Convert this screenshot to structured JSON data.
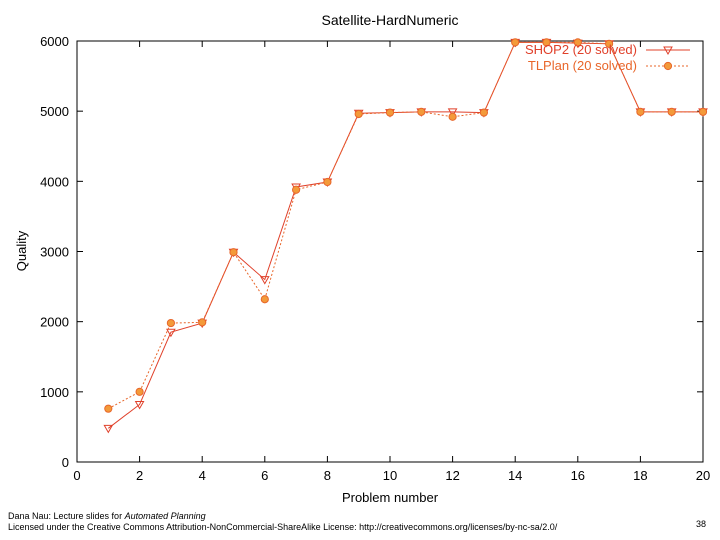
{
  "chart_data": {
    "type": "line",
    "title": "Satellite-HardNumeric",
    "xlabel": "Problem number",
    "ylabel": "Quality",
    "xlim": [
      0,
      20
    ],
    "ylim": [
      0,
      6000
    ],
    "x_ticks": [
      0,
      2,
      4,
      6,
      8,
      10,
      12,
      14,
      16,
      18,
      20
    ],
    "y_ticks": [
      0,
      1000,
      2000,
      3000,
      4000,
      5000,
      6000
    ],
    "grid": false,
    "legend_position": "top-right",
    "series": [
      {
        "name": "SHOP2 (20 solved)",
        "color": "#e0402a",
        "line_style": "solid",
        "marker": "triangle-down",
        "x": [
          1,
          2,
          3,
          4,
          5,
          6,
          7,
          8,
          9,
          10,
          11,
          12,
          13,
          14,
          15,
          16,
          17,
          18,
          19,
          20
        ],
        "values": [
          480,
          820,
          1850,
          1980,
          2990,
          2600,
          3920,
          3990,
          4970,
          4980,
          4990,
          4990,
          4980,
          5980,
          5980,
          5970,
          5960,
          4990,
          4990,
          4990
        ]
      },
      {
        "name": "TLPlan (20 solved)",
        "color": "#e8662a",
        "line_style": "dotted",
        "marker": "circle",
        "x": [
          1,
          2,
          3,
          4,
          5,
          6,
          7,
          8,
          9,
          10,
          11,
          12,
          13,
          14,
          15,
          16,
          17,
          18,
          19,
          20
        ],
        "values": [
          760,
          1000,
          1980,
          1990,
          2990,
          2320,
          3880,
          3990,
          4960,
          4980,
          4990,
          4920,
          4980,
          5980,
          5980,
          5980,
          5960,
          4990,
          4990,
          4990
        ]
      }
    ]
  },
  "footer": {
    "line1_prefix": "Dana Nau: Lecture slides for ",
    "line1_title": "Automated Planning",
    "line2": "Licensed under the Creative Commons Attribution-NonCommercial-ShareAlike License: http://creativecommons.org/licenses/by-nc-sa/2.0/"
  },
  "page_number": "38"
}
